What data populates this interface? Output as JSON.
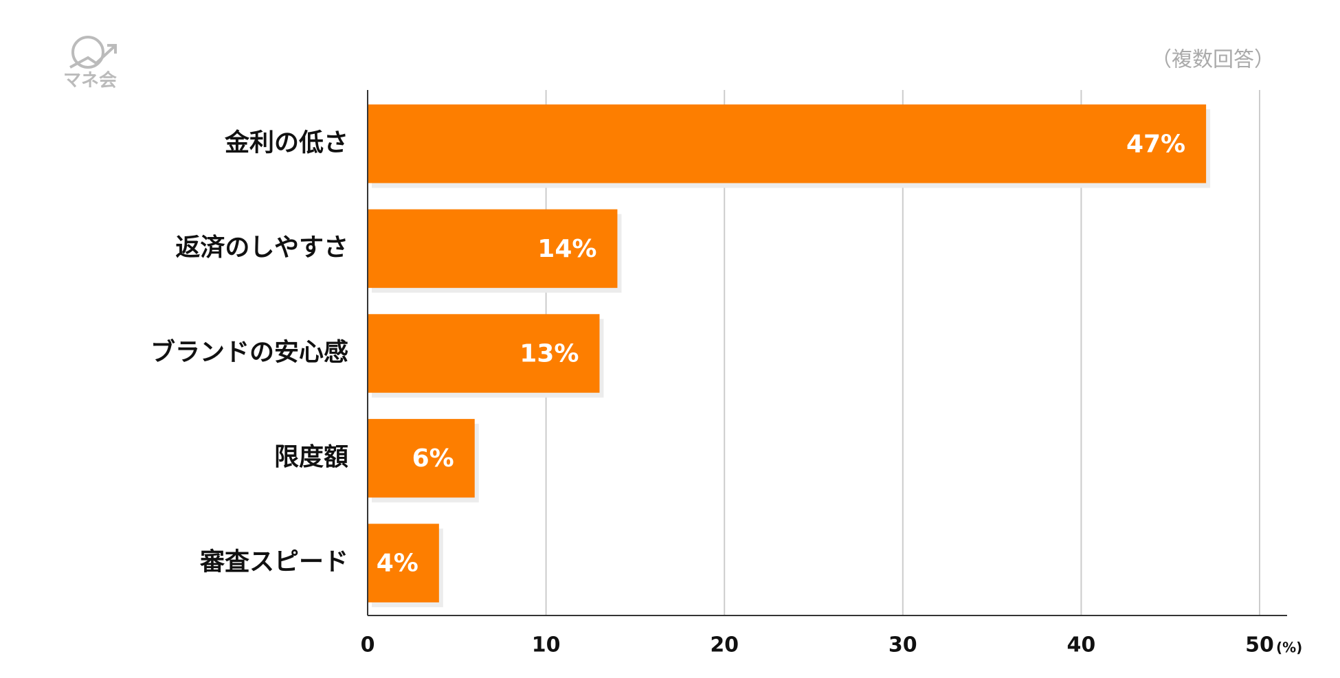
{
  "chart_data": {
    "type": "barh",
    "logo": "マネ会",
    "note": "（複数回答）",
    "categories": [
      "金利の低さ",
      "返済のしやすさ",
      "ブランドの安心感",
      "限度額",
      "審査スピード"
    ],
    "values": [
      47,
      14,
      13,
      6,
      4
    ],
    "value_labels": [
      "47%",
      "14%",
      "13%",
      "6%",
      "4%"
    ],
    "color": "#fd7e00",
    "xlim": [
      0,
      50
    ],
    "xticks": [
      0,
      10,
      20,
      30,
      40,
      50
    ],
    "xlabel": "(%)",
    "grid": true
  }
}
